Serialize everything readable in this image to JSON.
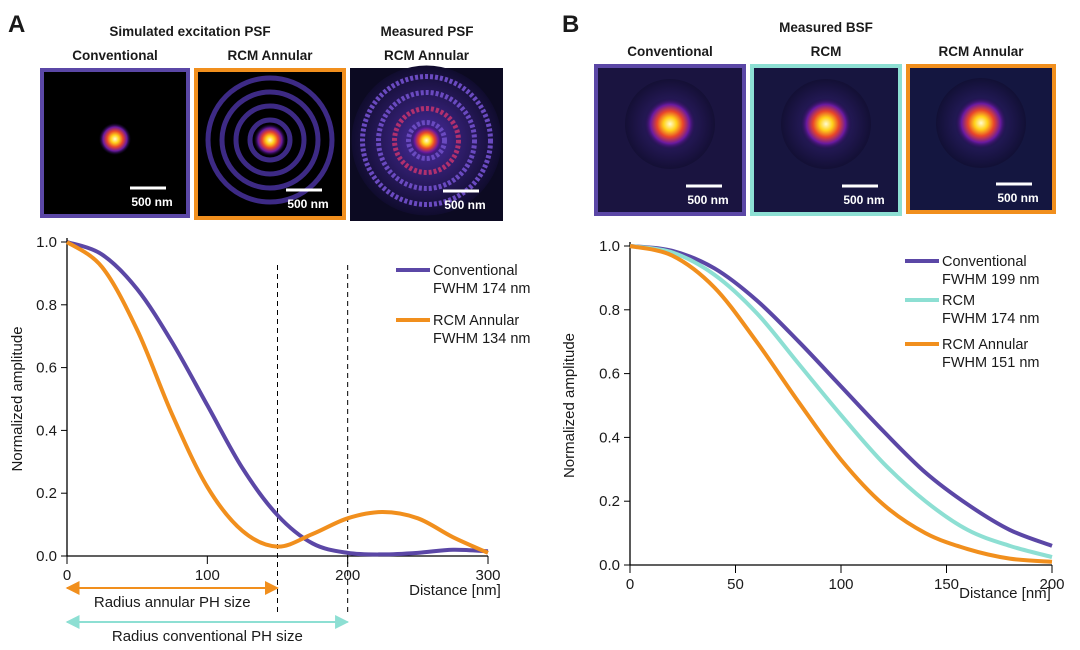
{
  "panels": [
    {
      "label": "A",
      "headers": [
        "Simulated excitation PSF",
        "Measured PSF"
      ],
      "images": [
        {
          "title": "Conventional",
          "scale_bar": "500 nm"
        },
        {
          "title": "RCM Annular",
          "scale_bar": "500 nm"
        },
        {
          "title": "RCM Annular",
          "scale_bar": "500 nm"
        }
      ]
    },
    {
      "label": "B",
      "headers": [
        "Measured BSF"
      ],
      "images": [
        {
          "title": "Conventional",
          "scale_bar": "500 nm"
        },
        {
          "title": "RCM",
          "scale_bar": "500 nm"
        },
        {
          "title": "RCM Annular",
          "scale_bar": "500 nm"
        }
      ]
    }
  ],
  "chart_data": [
    {
      "type": "line",
      "x_label": "Distance [nm]",
      "y_label": "Normalized amplitude",
      "x": [
        0,
        25,
        50,
        75,
        100,
        125,
        150,
        175,
        200,
        225,
        250,
        275,
        300
      ],
      "series": [
        {
          "name": "Conventional",
          "note": "FWHM 174 nm",
          "color": "#5b47a6",
          "values": [
            1.0,
            0.96,
            0.85,
            0.68,
            0.48,
            0.28,
            0.13,
            0.04,
            0.01,
            0.005,
            0.01,
            0.02,
            0.015
          ]
        },
        {
          "name": "RCM Annular",
          "note": "FWHM 134 nm",
          "color": "#f18f1d",
          "values": [
            1.0,
            0.92,
            0.72,
            0.45,
            0.22,
            0.08,
            0.03,
            0.07,
            0.12,
            0.14,
            0.12,
            0.06,
            0.01
          ]
        }
      ],
      "xlim": [
        0,
        300
      ],
      "xticks": [
        0,
        100,
        200,
        300
      ],
      "ylim": [
        0,
        1
      ],
      "yticks": [
        {
          "value": 0,
          "label": "0.0"
        },
        {
          "value": 0.2,
          "label": "0.2"
        },
        {
          "value": 0.4,
          "label": "0.4"
        },
        {
          "value": 0.6,
          "label": "0.6"
        },
        {
          "value": 0.8,
          "label": "0.8"
        },
        {
          "value": 1,
          "label": "1.0"
        }
      ],
      "pinhole_radii": [
        {
          "value": 150,
          "label": "Radius annular PH size",
          "color": "#f18f1d"
        },
        {
          "value": 200,
          "label": "Radius conventional PH size",
          "color": "#8ddfd3"
        }
      ]
    },
    {
      "type": "line",
      "x_label": "Distance [nm]",
      "y_label": "Normalized amplitude",
      "x": [
        0,
        20,
        40,
        60,
        80,
        100,
        120,
        140,
        160,
        180,
        200
      ],
      "series": [
        {
          "name": "Conventional",
          "note": "FWHM 199 nm",
          "color": "#5b47a6",
          "values": [
            1.0,
            0.985,
            0.93,
            0.83,
            0.7,
            0.56,
            0.42,
            0.29,
            0.19,
            0.11,
            0.06
          ]
        },
        {
          "name": "RCM",
          "note": "FWHM 174 nm",
          "color": "#8ddfd3",
          "values": [
            1.0,
            0.98,
            0.91,
            0.79,
            0.63,
            0.47,
            0.32,
            0.2,
            0.11,
            0.06,
            0.025
          ]
        },
        {
          "name": "RCM Annular",
          "note": "FWHM 151 nm",
          "color": "#f18f1d",
          "values": [
            1.0,
            0.97,
            0.87,
            0.7,
            0.51,
            0.33,
            0.19,
            0.1,
            0.05,
            0.02,
            0.01
          ]
        }
      ],
      "xlim": [
        0,
        200
      ],
      "xticks": [
        0,
        50,
        100,
        150,
        200
      ],
      "ylim": [
        0,
        1
      ],
      "yticks": [
        {
          "value": 0,
          "label": "0.0"
        },
        {
          "value": 0.2,
          "label": "0.2"
        },
        {
          "value": 0.4,
          "label": "0.4"
        },
        {
          "value": 0.6,
          "label": "0.6"
        },
        {
          "value": 0.8,
          "label": "0.8"
        },
        {
          "value": 1,
          "label": "1.0"
        }
      ]
    }
  ]
}
